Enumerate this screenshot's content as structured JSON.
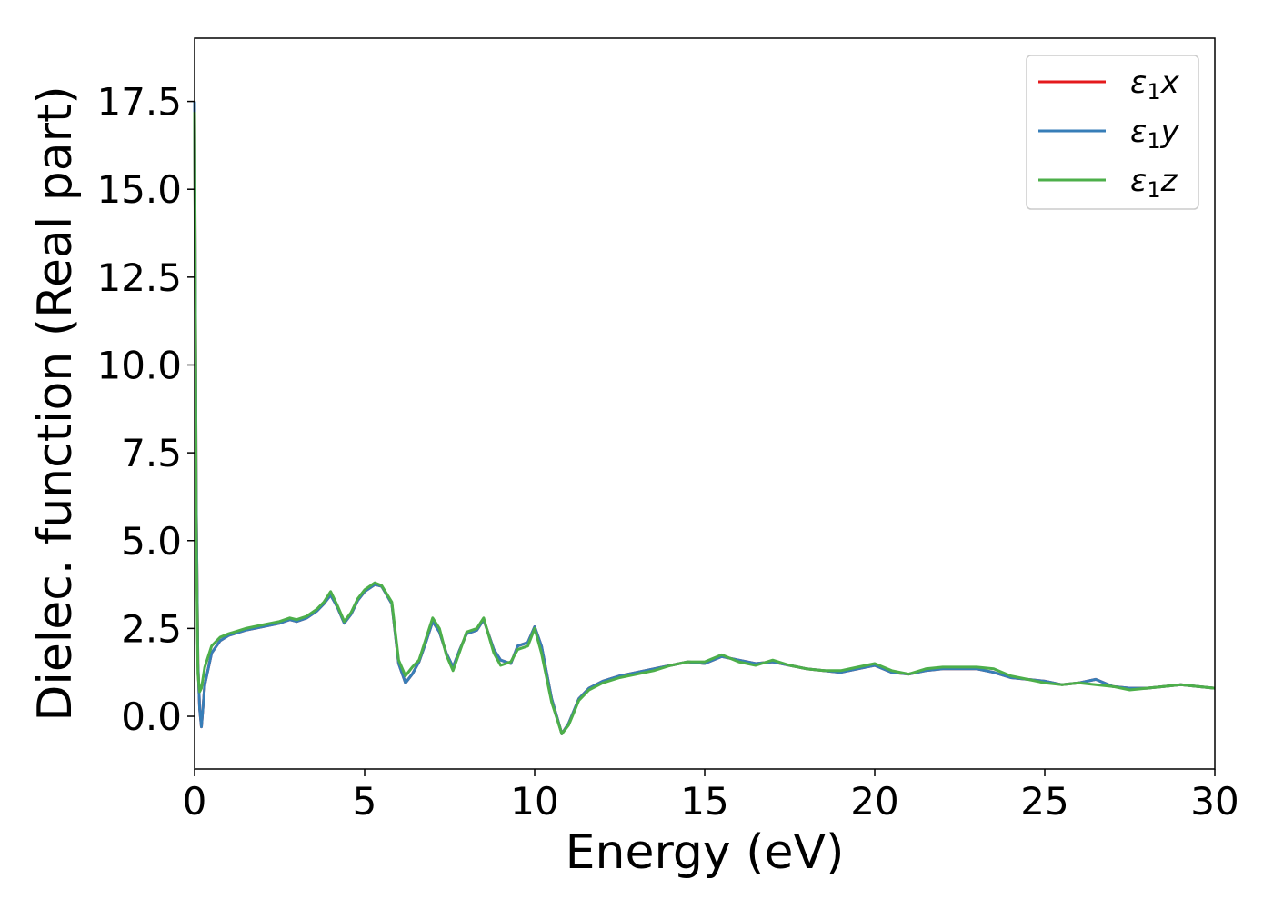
{
  "chart_data": {
    "type": "line",
    "xlabel": "Energy (eV)",
    "ylabel": "Dielec. function (Real part)",
    "xlim": [
      0,
      30
    ],
    "ylim": [
      -1.5,
      19.3
    ],
    "xticks": [
      "0",
      "5",
      "10",
      "15",
      "20",
      "25",
      "30"
    ],
    "yticks": [
      "0.0",
      "2.5",
      "5.0",
      "7.5",
      "10.0",
      "12.5",
      "15.0",
      "17.5"
    ],
    "grid": false,
    "legend_position": "top-right",
    "x": [
      0,
      0.05,
      0.1,
      0.15,
      0.2,
      0.3,
      0.5,
      0.75,
      1.0,
      1.5,
      2.0,
      2.5,
      2.8,
      3.0,
      3.3,
      3.6,
      3.8,
      4.0,
      4.2,
      4.4,
      4.6,
      4.8,
      5.0,
      5.3,
      5.5,
      5.8,
      6.0,
      6.2,
      6.4,
      6.6,
      6.8,
      7.0,
      7.2,
      7.4,
      7.6,
      7.8,
      8.0,
      8.3,
      8.5,
      8.8,
      9.0,
      9.3,
      9.5,
      9.8,
      10.0,
      10.2,
      10.5,
      10.8,
      11.0,
      11.3,
      11.6,
      12.0,
      12.5,
      13.0,
      13.5,
      14.0,
      14.5,
      15.0,
      15.5,
      16.0,
      16.5,
      17.0,
      17.5,
      18.0,
      18.5,
      19.0,
      19.5,
      20.0,
      20.5,
      21.0,
      21.5,
      22.0,
      22.5,
      23.0,
      23.5,
      24.0,
      24.5,
      25.0,
      25.5,
      26.0,
      26.5,
      27.0,
      27.5,
      28.0,
      28.5,
      29.0,
      29.5,
      30.0
    ],
    "series": [
      {
        "name": "ε1x",
        "color": "#e41a1c",
        "values": [
          17.5,
          6.0,
          1.5,
          0.2,
          -0.3,
          0.9,
          1.8,
          2.15,
          2.3,
          2.45,
          2.55,
          2.65,
          2.75,
          2.7,
          2.8,
          3.0,
          3.2,
          3.45,
          3.1,
          2.65,
          2.9,
          3.3,
          3.55,
          3.75,
          3.7,
          3.2,
          1.5,
          0.95,
          1.2,
          1.55,
          2.1,
          2.7,
          2.4,
          1.8,
          1.4,
          1.9,
          2.35,
          2.45,
          2.75,
          1.9,
          1.6,
          1.5,
          2.0,
          2.1,
          2.55,
          2.0,
          0.5,
          -0.5,
          -0.2,
          0.5,
          0.8,
          1.0,
          1.15,
          1.25,
          1.35,
          1.45,
          1.55,
          1.5,
          1.7,
          1.6,
          1.5,
          1.55,
          1.45,
          1.35,
          1.3,
          1.25,
          1.35,
          1.45,
          1.25,
          1.2,
          1.3,
          1.35,
          1.35,
          1.35,
          1.25,
          1.1,
          1.05,
          1.0,
          0.9,
          0.95,
          1.05,
          0.85,
          0.8,
          0.8,
          0.85,
          0.9,
          0.85,
          0.8
        ]
      },
      {
        "name": "ε1y",
        "color": "#377eb8",
        "values": [
          17.5,
          6.0,
          1.5,
          0.2,
          -0.3,
          0.9,
          1.8,
          2.15,
          2.3,
          2.45,
          2.55,
          2.65,
          2.75,
          2.7,
          2.8,
          3.0,
          3.2,
          3.45,
          3.1,
          2.65,
          2.9,
          3.3,
          3.55,
          3.75,
          3.7,
          3.2,
          1.5,
          0.95,
          1.2,
          1.55,
          2.1,
          2.7,
          2.4,
          1.8,
          1.4,
          1.9,
          2.35,
          2.45,
          2.75,
          1.9,
          1.6,
          1.5,
          2.0,
          2.1,
          2.55,
          2.0,
          0.5,
          -0.5,
          -0.2,
          0.5,
          0.8,
          1.0,
          1.15,
          1.25,
          1.35,
          1.45,
          1.55,
          1.5,
          1.7,
          1.6,
          1.5,
          1.55,
          1.45,
          1.35,
          1.3,
          1.25,
          1.35,
          1.45,
          1.25,
          1.2,
          1.3,
          1.35,
          1.35,
          1.35,
          1.25,
          1.1,
          1.05,
          1.0,
          0.9,
          0.95,
          1.05,
          0.85,
          0.8,
          0.8,
          0.85,
          0.9,
          0.85,
          0.8
        ]
      },
      {
        "name": "ε1z",
        "color": "#4daf4a",
        "values": [
          17.2,
          5.0,
          1.2,
          0.7,
          0.8,
          1.4,
          2.0,
          2.25,
          2.35,
          2.5,
          2.6,
          2.7,
          2.8,
          2.75,
          2.85,
          3.05,
          3.25,
          3.55,
          3.15,
          2.7,
          2.95,
          3.35,
          3.6,
          3.8,
          3.72,
          3.25,
          1.6,
          1.15,
          1.4,
          1.6,
          2.2,
          2.8,
          2.5,
          1.75,
          1.3,
          1.85,
          2.4,
          2.5,
          2.8,
          1.8,
          1.45,
          1.55,
          1.9,
          2.0,
          2.5,
          1.8,
          0.4,
          -0.5,
          -0.25,
          0.45,
          0.75,
          0.95,
          1.1,
          1.2,
          1.3,
          1.45,
          1.55,
          1.55,
          1.75,
          1.55,
          1.45,
          1.6,
          1.45,
          1.35,
          1.3,
          1.3,
          1.4,
          1.5,
          1.3,
          1.2,
          1.35,
          1.4,
          1.4,
          1.4,
          1.35,
          1.15,
          1.05,
          0.95,
          0.9,
          0.95,
          0.9,
          0.85,
          0.75,
          0.8,
          0.85,
          0.9,
          0.85,
          0.8
        ]
      }
    ]
  }
}
